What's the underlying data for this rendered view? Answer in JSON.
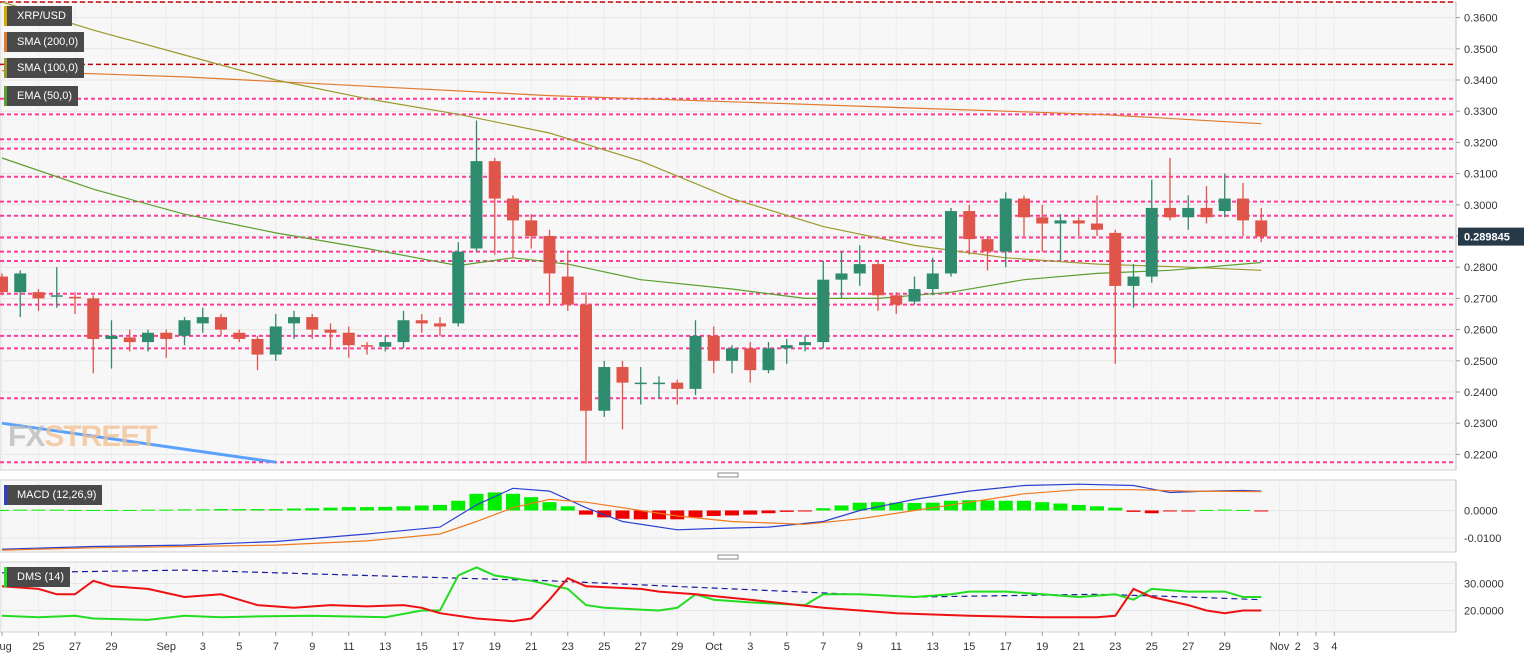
{
  "chart_data": {
    "type": "candlestick",
    "symbol": "XRP/USD",
    "last_price_label": "0.289845",
    "colors": {
      "up": "#2e8b6e",
      "down": "#e0554a",
      "sma200": "#e07a2e",
      "sma100": "#9a9a2e",
      "ema50": "#5aa02e",
      "hline": "#ff3b9a",
      "hline_red": "#cc0000",
      "trendline": "#5aa0ff",
      "macd": "#2a3fd0",
      "signal": "#f07a1e",
      "hist_pos": "#00ee00",
      "hist_neg": "#ee0000",
      "dms_plus": "#22dd22",
      "dms_minus": "#ee1111",
      "adx": "#1a1aa0"
    },
    "legends": {
      "symbol": "XRP/USD",
      "sma200": "SMA (200,0)",
      "sma100": "SMA (100,0)",
      "ema50": "EMA (50,0)",
      "macd": "MACD (12,26,9)",
      "dms": "DMS (14)"
    },
    "watermark": {
      "part1": "FX",
      "part2": "STREET"
    },
    "price_axis": {
      "min": 0.215,
      "max": 0.365,
      "ticks": [
        0.22,
        0.23,
        0.24,
        0.25,
        0.26,
        0.27,
        0.28,
        0.29,
        0.3,
        0.31,
        0.32,
        0.33,
        0.34,
        0.35,
        0.36
      ],
      "tick_labels": [
        "0.2200",
        "0.2300",
        "0.2400",
        "0.2500",
        "0.2600",
        "0.2700",
        "0.2800",
        "0.2900",
        "0.3000",
        "0.3100",
        "0.3200",
        "0.3300",
        "0.3400",
        "0.3500",
        "0.3600"
      ]
    },
    "macd_axis": {
      "min": -0.015,
      "max": 0.011,
      "ticks": [
        0.0,
        -0.01
      ],
      "tick_labels": [
        "0.0000",
        "-0.0100"
      ]
    },
    "dms_axis": {
      "min": 12,
      "max": 38,
      "ticks": [
        20,
        30
      ],
      "tick_labels": [
        "20.0000",
        "30.0000"
      ]
    },
    "x_labels": [
      {
        "i": 0,
        "label": "Aug"
      },
      {
        "i": 2,
        "label": "25"
      },
      {
        "i": 4,
        "label": "27"
      },
      {
        "i": 6,
        "label": "29"
      },
      {
        "i": 9,
        "label": "Sep"
      },
      {
        "i": 11,
        "label": "3"
      },
      {
        "i": 13,
        "label": "5"
      },
      {
        "i": 15,
        "label": "7"
      },
      {
        "i": 17,
        "label": "9"
      },
      {
        "i": 19,
        "label": "11"
      },
      {
        "i": 21,
        "label": "13"
      },
      {
        "i": 23,
        "label": "15"
      },
      {
        "i": 25,
        "label": "17"
      },
      {
        "i": 27,
        "label": "19"
      },
      {
        "i": 29,
        "label": "21"
      },
      {
        "i": 31,
        "label": "23"
      },
      {
        "i": 33,
        "label": "25"
      },
      {
        "i": 35,
        "label": "27"
      },
      {
        "i": 37,
        "label": "29"
      },
      {
        "i": 39,
        "label": "Oct"
      },
      {
        "i": 41,
        "label": "3"
      },
      {
        "i": 43,
        "label": "5"
      },
      {
        "i": 45,
        "label": "7"
      },
      {
        "i": 47,
        "label": "9"
      },
      {
        "i": 49,
        "label": "11"
      },
      {
        "i": 51,
        "label": "13"
      },
      {
        "i": 53,
        "label": "15"
      },
      {
        "i": 55,
        "label": "17"
      },
      {
        "i": 57,
        "label": "19"
      },
      {
        "i": 59,
        "label": "21"
      },
      {
        "i": 61,
        "label": "23"
      },
      {
        "i": 63,
        "label": "25"
      },
      {
        "i": 65,
        "label": "27"
      },
      {
        "i": 67,
        "label": "29"
      },
      {
        "i": 70,
        "label": "Nov"
      },
      {
        "i": 71,
        "label": "2"
      },
      {
        "i": 72,
        "label": "3"
      },
      {
        "i": 73,
        "label": "4"
      }
    ],
    "candles": [
      {
        "o": 0.277,
        "h": 0.278,
        "l": 0.271,
        "c": 0.272
      },
      {
        "o": 0.272,
        "h": 0.279,
        "l": 0.264,
        "c": 0.278
      },
      {
        "o": 0.272,
        "h": 0.273,
        "l": 0.266,
        "c": 0.27
      },
      {
        "o": 0.271,
        "h": 0.28,
        "l": 0.267,
        "c": 0.271
      },
      {
        "o": 0.2705,
        "h": 0.272,
        "l": 0.265,
        "c": 0.27
      },
      {
        "o": 0.27,
        "h": 0.271,
        "l": 0.246,
        "c": 0.257
      },
      {
        "o": 0.257,
        "h": 0.263,
        "l": 0.2475,
        "c": 0.258
      },
      {
        "o": 0.2575,
        "h": 0.26,
        "l": 0.253,
        "c": 0.256
      },
      {
        "o": 0.256,
        "h": 0.26,
        "l": 0.253,
        "c": 0.259
      },
      {
        "o": 0.259,
        "h": 0.26,
        "l": 0.251,
        "c": 0.257
      },
      {
        "o": 0.258,
        "h": 0.264,
        "l": 0.255,
        "c": 0.263
      },
      {
        "o": 0.262,
        "h": 0.267,
        "l": 0.259,
        "c": 0.264
      },
      {
        "o": 0.264,
        "h": 0.265,
        "l": 0.258,
        "c": 0.26
      },
      {
        "o": 0.259,
        "h": 0.26,
        "l": 0.256,
        "c": 0.257
      },
      {
        "o": 0.257,
        "h": 0.258,
        "l": 0.247,
        "c": 0.252
      },
      {
        "o": 0.252,
        "h": 0.265,
        "l": 0.25,
        "c": 0.261
      },
      {
        "o": 0.262,
        "h": 0.266,
        "l": 0.257,
        "c": 0.264
      },
      {
        "o": 0.264,
        "h": 0.265,
        "l": 0.257,
        "c": 0.26
      },
      {
        "o": 0.26,
        "h": 0.262,
        "l": 0.254,
        "c": 0.259
      },
      {
        "o": 0.259,
        "h": 0.261,
        "l": 0.251,
        "c": 0.255
      },
      {
        "o": 0.255,
        "h": 0.256,
        "l": 0.252,
        "c": 0.2545
      },
      {
        "o": 0.2545,
        "h": 0.258,
        "l": 0.253,
        "c": 0.256
      },
      {
        "o": 0.256,
        "h": 0.266,
        "l": 0.254,
        "c": 0.263
      },
      {
        "o": 0.263,
        "h": 0.265,
        "l": 0.259,
        "c": 0.262
      },
      {
        "o": 0.262,
        "h": 0.264,
        "l": 0.258,
        "c": 0.261
      },
      {
        "o": 0.262,
        "h": 0.288,
        "l": 0.261,
        "c": 0.285
      },
      {
        "o": 0.286,
        "h": 0.327,
        "l": 0.285,
        "c": 0.314
      },
      {
        "o": 0.314,
        "h": 0.315,
        "l": 0.284,
        "c": 0.302
      },
      {
        "o": 0.302,
        "h": 0.303,
        "l": 0.283,
        "c": 0.295
      },
      {
        "o": 0.295,
        "h": 0.297,
        "l": 0.286,
        "c": 0.29
      },
      {
        "o": 0.29,
        "h": 0.292,
        "l": 0.268,
        "c": 0.278
      },
      {
        "o": 0.277,
        "h": 0.285,
        "l": 0.266,
        "c": 0.268
      },
      {
        "o": 0.268,
        "h": 0.272,
        "l": 0.217,
        "c": 0.234
      },
      {
        "o": 0.234,
        "h": 0.25,
        "l": 0.232,
        "c": 0.248
      },
      {
        "o": 0.248,
        "h": 0.25,
        "l": 0.228,
        "c": 0.243
      },
      {
        "o": 0.243,
        "h": 0.248,
        "l": 0.236,
        "c": 0.243
      },
      {
        "o": 0.243,
        "h": 0.245,
        "l": 0.238,
        "c": 0.243
      },
      {
        "o": 0.243,
        "h": 0.244,
        "l": 0.236,
        "c": 0.241
      },
      {
        "o": 0.241,
        "h": 0.263,
        "l": 0.239,
        "c": 0.258
      },
      {
        "o": 0.258,
        "h": 0.261,
        "l": 0.246,
        "c": 0.25
      },
      {
        "o": 0.25,
        "h": 0.255,
        "l": 0.246,
        "c": 0.254
      },
      {
        "o": 0.254,
        "h": 0.256,
        "l": 0.243,
        "c": 0.247
      },
      {
        "o": 0.247,
        "h": 0.256,
        "l": 0.246,
        "c": 0.254
      },
      {
        "o": 0.254,
        "h": 0.257,
        "l": 0.249,
        "c": 0.255
      },
      {
        "o": 0.255,
        "h": 0.258,
        "l": 0.253,
        "c": 0.256
      },
      {
        "o": 0.256,
        "h": 0.282,
        "l": 0.254,
        "c": 0.276
      },
      {
        "o": 0.276,
        "h": 0.285,
        "l": 0.27,
        "c": 0.278
      },
      {
        "o": 0.278,
        "h": 0.287,
        "l": 0.274,
        "c": 0.281
      },
      {
        "o": 0.281,
        "h": 0.282,
        "l": 0.266,
        "c": 0.271
      },
      {
        "o": 0.271,
        "h": 0.272,
        "l": 0.265,
        "c": 0.268
      },
      {
        "o": 0.269,
        "h": 0.277,
        "l": 0.268,
        "c": 0.273
      },
      {
        "o": 0.273,
        "h": 0.283,
        "l": 0.271,
        "c": 0.278
      },
      {
        "o": 0.278,
        "h": 0.299,
        "l": 0.277,
        "c": 0.298
      },
      {
        "o": 0.298,
        "h": 0.3,
        "l": 0.284,
        "c": 0.289
      },
      {
        "o": 0.289,
        "h": 0.29,
        "l": 0.279,
        "c": 0.285
      },
      {
        "o": 0.285,
        "h": 0.304,
        "l": 0.28,
        "c": 0.302
      },
      {
        "o": 0.302,
        "h": 0.303,
        "l": 0.29,
        "c": 0.296
      },
      {
        "o": 0.296,
        "h": 0.3,
        "l": 0.285,
        "c": 0.294
      },
      {
        "o": 0.294,
        "h": 0.297,
        "l": 0.282,
        "c": 0.295
      },
      {
        "o": 0.295,
        "h": 0.296,
        "l": 0.29,
        "c": 0.294
      },
      {
        "o": 0.294,
        "h": 0.303,
        "l": 0.29,
        "c": 0.292
      },
      {
        "o": 0.291,
        "h": 0.292,
        "l": 0.249,
        "c": 0.274
      },
      {
        "o": 0.274,
        "h": 0.281,
        "l": 0.267,
        "c": 0.277
      },
      {
        "o": 0.277,
        "h": 0.308,
        "l": 0.275,
        "c": 0.299
      },
      {
        "o": 0.299,
        "h": 0.315,
        "l": 0.295,
        "c": 0.296
      },
      {
        "o": 0.296,
        "h": 0.303,
        "l": 0.292,
        "c": 0.299
      },
      {
        "o": 0.299,
        "h": 0.306,
        "l": 0.294,
        "c": 0.296
      },
      {
        "o": 0.298,
        "h": 0.31,
        "l": 0.296,
        "c": 0.302
      },
      {
        "o": 0.302,
        "h": 0.307,
        "l": 0.29,
        "c": 0.295
      },
      {
        "o": 0.295,
        "h": 0.299,
        "l": 0.288,
        "c": 0.2898
      }
    ],
    "sma200": [
      [
        0,
        0.343
      ],
      [
        10,
        0.341
      ],
      [
        20,
        0.338
      ],
      [
        30,
        0.335
      ],
      [
        40,
        0.333
      ],
      [
        50,
        0.331
      ],
      [
        60,
        0.329
      ],
      [
        69,
        0.326
      ]
    ],
    "sma100": [
      [
        0,
        0.365
      ],
      [
        5,
        0.356
      ],
      [
        10,
        0.348
      ],
      [
        15,
        0.34
      ],
      [
        20,
        0.334
      ],
      [
        25,
        0.329
      ],
      [
        30,
        0.323
      ],
      [
        35,
        0.314
      ],
      [
        40,
        0.302
      ],
      [
        45,
        0.293
      ],
      [
        50,
        0.287
      ],
      [
        55,
        0.283
      ],
      [
        60,
        0.281
      ],
      [
        65,
        0.28
      ],
      [
        69,
        0.279
      ]
    ],
    "ema50": [
      [
        0,
        0.315
      ],
      [
        5,
        0.305
      ],
      [
        10,
        0.297
      ],
      [
        15,
        0.291
      ],
      [
        20,
        0.286
      ],
      [
        25,
        0.2805
      ],
      [
        28,
        0.283
      ],
      [
        31,
        0.281
      ],
      [
        35,
        0.276
      ],
      [
        40,
        0.273
      ],
      [
        44,
        0.27
      ],
      [
        48,
        0.27
      ],
      [
        52,
        0.272
      ],
      [
        56,
        0.276
      ],
      [
        60,
        0.278
      ],
      [
        64,
        0.279
      ],
      [
        69,
        0.2815
      ]
    ],
    "hlines_dashed_red": [
      0.365,
      0.345
    ],
    "hlines_pink": [
      0.334,
      0.329,
      0.321,
      0.318,
      0.309,
      0.301,
      0.2965,
      0.2895,
      0.285,
      0.282,
      0.2715,
      0.268,
      0.258,
      0.254,
      0.238,
      0.2175
    ],
    "trendline": [
      [
        0,
        0.23
      ],
      [
        15,
        0.2175
      ]
    ],
    "macd_line": [
      [
        0,
        -0.014
      ],
      [
        5,
        -0.013
      ],
      [
        10,
        -0.0125
      ],
      [
        15,
        -0.0112
      ],
      [
        20,
        -0.0085
      ],
      [
        24,
        -0.006
      ],
      [
        26,
        0.002
      ],
      [
        28,
        0.008
      ],
      [
        30,
        0.007
      ],
      [
        32,
        0.001
      ],
      [
        34,
        -0.004
      ],
      [
        37,
        -0.007
      ],
      [
        39,
        -0.0065
      ],
      [
        42,
        -0.006
      ],
      [
        45,
        -0.004
      ],
      [
        47,
        0.0
      ],
      [
        50,
        0.004
      ],
      [
        53,
        0.007
      ],
      [
        56,
        0.009
      ],
      [
        59,
        0.0095
      ],
      [
        62,
        0.009
      ],
      [
        64,
        0.0065
      ],
      [
        66,
        0.007
      ],
      [
        68,
        0.0072
      ],
      [
        69,
        0.007
      ]
    ],
    "signal_line": [
      [
        0,
        -0.0143
      ],
      [
        5,
        -0.0135
      ],
      [
        10,
        -0.013
      ],
      [
        15,
        -0.0125
      ],
      [
        20,
        -0.011
      ],
      [
        24,
        -0.0085
      ],
      [
        26,
        -0.004
      ],
      [
        28,
        0.001
      ],
      [
        30,
        0.004
      ],
      [
        32,
        0.003
      ],
      [
        34,
        0.001
      ],
      [
        37,
        -0.002
      ],
      [
        40,
        -0.004
      ],
      [
        44,
        -0.005
      ],
      [
        47,
        -0.003
      ],
      [
        50,
        0.0
      ],
      [
        53,
        0.003
      ],
      [
        56,
        0.006
      ],
      [
        59,
        0.0075
      ],
      [
        62,
        0.0075
      ],
      [
        65,
        0.007
      ],
      [
        69,
        0.0068
      ]
    ],
    "macd_hist": [
      0.0002,
      0.0003,
      0.0003,
      0.0003,
      0.0002,
      0.0002,
      0.0002,
      0.0002,
      0.0003,
      0.0003,
      0.0004,
      0.0004,
      0.0005,
      0.0005,
      0.0005,
      0.0005,
      0.0007,
      0.0008,
      0.001,
      0.0012,
      0.0012,
      0.0013,
      0.0015,
      0.0018,
      0.002,
      0.0035,
      0.006,
      0.0065,
      0.006,
      0.0048,
      0.003,
      0.0015,
      -0.0015,
      -0.0025,
      -0.003,
      -0.0032,
      -0.0032,
      -0.0032,
      -0.0025,
      -0.002,
      -0.0018,
      -0.0015,
      -0.001,
      -0.0005,
      -0.0002,
      0.0008,
      0.0018,
      0.0028,
      0.003,
      0.0028,
      0.0027,
      0.0028,
      0.0035,
      0.0037,
      0.0036,
      0.0035,
      0.0035,
      0.003,
      0.0025,
      0.002,
      0.0015,
      0.001,
      -0.0005,
      -0.001,
      -0.0003,
      -0.0001,
      0.0002,
      0.0003,
      0.0002,
      -0.0003
    ],
    "dms_plus": [
      [
        0,
        18
      ],
      [
        2,
        17.5
      ],
      [
        4,
        18
      ],
      [
        5,
        17
      ],
      [
        8,
        16.5
      ],
      [
        10,
        18
      ],
      [
        12,
        17.5
      ],
      [
        14,
        17.8
      ],
      [
        17,
        18
      ],
      [
        21,
        17.5
      ],
      [
        23,
        20
      ],
      [
        24,
        20
      ],
      [
        25,
        33
      ],
      [
        26,
        36
      ],
      [
        27,
        33
      ],
      [
        29,
        31
      ],
      [
        31,
        28
      ],
      [
        32,
        22
      ],
      [
        33,
        21
      ],
      [
        36,
        20
      ],
      [
        37,
        21
      ],
      [
        38,
        26
      ],
      [
        39,
        24
      ],
      [
        41,
        23
      ],
      [
        44,
        22
      ],
      [
        45,
        26
      ],
      [
        47,
        26
      ],
      [
        50,
        25
      ],
      [
        52,
        26
      ],
      [
        53,
        27
      ],
      [
        55,
        27
      ],
      [
        57,
        26
      ],
      [
        59,
        25
      ],
      [
        61,
        26
      ],
      [
        62,
        24
      ],
      [
        63,
        28
      ],
      [
        65,
        27
      ],
      [
        67,
        27
      ],
      [
        68,
        25
      ],
      [
        69,
        25
      ]
    ],
    "dms_minus": [
      [
        0,
        29
      ],
      [
        2,
        28
      ],
      [
        3,
        26
      ],
      [
        4,
        26
      ],
      [
        5,
        31
      ],
      [
        6,
        29
      ],
      [
        8,
        28
      ],
      [
        10,
        25
      ],
      [
        12,
        26
      ],
      [
        14,
        22
      ],
      [
        16,
        21
      ],
      [
        18,
        22
      ],
      [
        20,
        21.5
      ],
      [
        22,
        22
      ],
      [
        23,
        21
      ],
      [
        24,
        19
      ],
      [
        26,
        17
      ],
      [
        28,
        16
      ],
      [
        29,
        17
      ],
      [
        30,
        24
      ],
      [
        31,
        32
      ],
      [
        32,
        29
      ],
      [
        35,
        28
      ],
      [
        36,
        27
      ],
      [
        38,
        26
      ],
      [
        41,
        24
      ],
      [
        45,
        21
      ],
      [
        49,
        19
      ],
      [
        53,
        18
      ],
      [
        57,
        17.5
      ],
      [
        60,
        17.5
      ],
      [
        61,
        18
      ],
      [
        62,
        28
      ],
      [
        63,
        25
      ],
      [
        65,
        22
      ],
      [
        66,
        20
      ],
      [
        67,
        19
      ],
      [
        68,
        20
      ],
      [
        69,
        20
      ]
    ],
    "adx": [
      [
        0,
        34
      ],
      [
        10,
        35
      ],
      [
        20,
        33
      ],
      [
        30,
        31
      ],
      [
        40,
        28
      ],
      [
        50,
        25
      ],
      [
        60,
        26
      ],
      [
        65,
        25
      ],
      [
        69,
        24
      ]
    ]
  }
}
